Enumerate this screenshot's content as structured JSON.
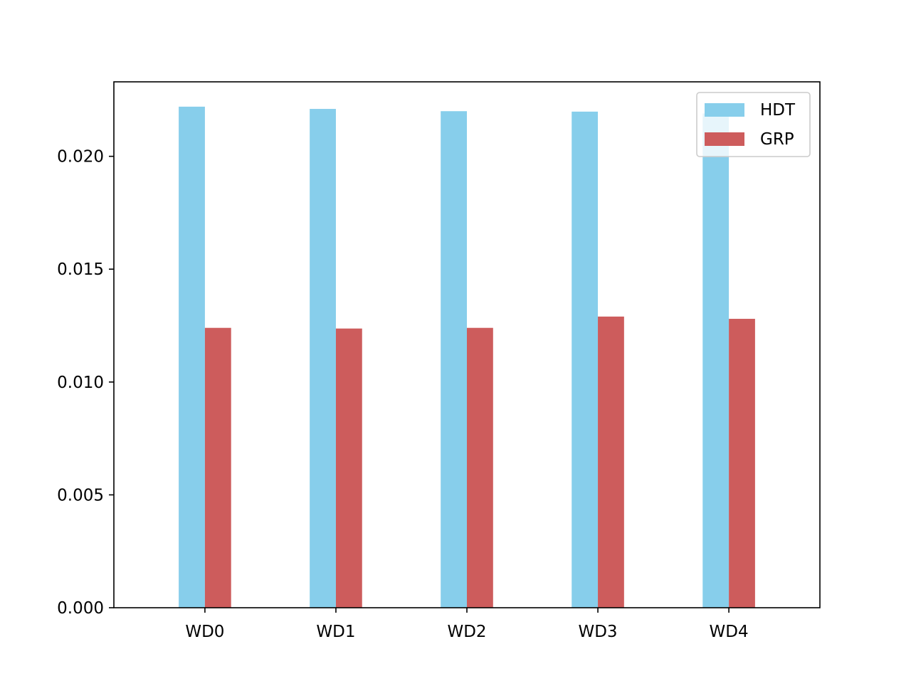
{
  "chart_data": {
    "type": "bar",
    "title": "",
    "xlabel": "",
    "ylabel": "",
    "categories": [
      "WD0",
      "WD1",
      "WD2",
      "WD3",
      "WD4"
    ],
    "series": [
      {
        "name": "HDT",
        "color": "#87ceeb",
        "values": [
          0.0222,
          0.0221,
          0.022,
          0.02198,
          0.0219
        ]
      },
      {
        "name": "GRP",
        "color": "#cd5c5c",
        "values": [
          0.0124,
          0.01237,
          0.0124,
          0.0129,
          0.0128
        ]
      }
    ],
    "ylim": [
      0,
      0.0233
    ],
    "yticks": [
      {
        "value": 0.0,
        "label": "0.000"
      },
      {
        "value": 0.005,
        "label": "0.005"
      },
      {
        "value": 0.01,
        "label": "0.010"
      },
      {
        "value": 0.015,
        "label": "0.015"
      },
      {
        "value": 0.02,
        "label": "0.020"
      }
    ],
    "legend_position": "top-right",
    "grid": false
  }
}
